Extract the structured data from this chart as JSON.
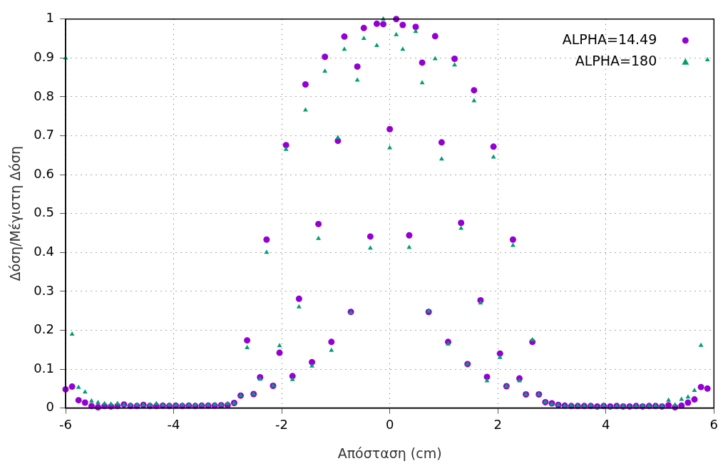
{
  "chart_data": {
    "type": "scatter",
    "xlabel": "Απόσταση (cm)",
    "ylabel": "Δόση/Μέγιστη Δόση",
    "x": [
      -6,
      -5.88,
      -5.76,
      -5.64,
      -5.52,
      -5.4,
      -5.28,
      -5.16,
      -5.04,
      -4.92,
      -4.8,
      -4.68,
      -4.56,
      -4.44,
      -4.32,
      -4.2,
      -4.08,
      -3.96,
      -3.84,
      -3.72,
      -3.6,
      -3.48,
      -3.36,
      -3.24,
      -3.12,
      -3,
      -2.88,
      -2.76,
      -2.64,
      -2.52,
      -2.4,
      -2.28,
      -2.16,
      -2.04,
      -1.92,
      -1.8,
      -1.68,
      -1.56,
      -1.44,
      -1.32,
      -1.2,
      -1.08,
      -0.96,
      -0.84,
      -0.72,
      -0.6,
      -0.48,
      -0.36,
      -0.24,
      -0.12,
      0,
      0.12,
      0.24,
      0.36,
      0.48,
      0.6,
      0.72,
      0.84,
      0.96,
      1.08,
      1.2,
      1.32,
      1.44,
      1.56,
      1.68,
      1.8,
      1.92,
      2.04,
      2.16,
      2.28,
      2.4,
      2.52,
      2.64,
      2.76,
      2.88,
      3,
      3.12,
      3.24,
      3.36,
      3.48,
      3.6,
      3.72,
      3.84,
      3.96,
      4.08,
      4.2,
      4.32,
      4.44,
      4.56,
      4.68,
      4.8,
      4.92,
      5.04,
      5.16,
      5.28,
      5.4,
      5.52,
      5.64,
      5.76,
      5.88
    ],
    "series": [
      {
        "name": "ALPHA=14.49",
        "color": "#9400d3",
        "marker": "circle",
        "values": [
          0.048,
          0.055,
          0.02,
          0.014,
          0.005,
          0.002,
          0.005,
          0.004,
          0.005,
          0.009,
          0.005,
          0.005,
          0.008,
          0.005,
          0.005,
          0.006,
          0.005,
          0.006,
          0.005,
          0.006,
          0.005,
          0.006,
          0.006,
          0.006,
          0.007,
          0.007,
          0.013,
          0.032,
          0.174,
          0.036,
          0.079,
          0.433,
          0.057,
          0.142,
          0.676,
          0.082,
          0.281,
          0.832,
          0.118,
          0.473,
          0.903,
          0.17,
          0.687,
          0.955,
          0.247,
          0.878,
          0.977,
          0.441,
          0.988,
          0.987,
          0.717,
          1.0,
          0.985,
          0.444,
          0.98,
          0.888,
          0.247,
          0.956,
          0.683,
          0.17,
          0.898,
          0.476,
          0.113,
          0.817,
          0.277,
          0.08,
          0.672,
          0.14,
          0.056,
          0.433,
          0.076,
          0.035,
          0.17,
          0.035,
          0.015,
          0.012,
          0.008,
          0.006,
          0.005,
          0.005,
          0.005,
          0.005,
          0.004,
          0.005,
          0.004,
          0.005,
          0.004,
          0.004,
          0.005,
          0.004,
          0.005,
          0.005,
          0.004,
          0.007,
          0.002,
          0.006,
          0.014,
          0.022,
          0.054,
          0.05
        ]
      },
      {
        "name": "ALPHA=180",
        "color": "#009e73",
        "marker": "triangle",
        "values": [
          0.9,
          0.19,
          0.053,
          0.041,
          0.018,
          0.014,
          0.011,
          0.01,
          0.011,
          0.008,
          0.008,
          0.008,
          0.008,
          0.008,
          0.011,
          0.008,
          0.008,
          0.008,
          0.008,
          0.008,
          0.008,
          0.008,
          0.008,
          0.009,
          0.008,
          0.011,
          0.012,
          0.032,
          0.155,
          0.036,
          0.074,
          0.4,
          0.057,
          0.16,
          0.665,
          0.073,
          0.26,
          0.766,
          0.108,
          0.436,
          0.866,
          0.148,
          0.695,
          0.922,
          0.245,
          0.843,
          0.95,
          0.411,
          0.932,
          1.0,
          0.669,
          0.96,
          0.922,
          0.413,
          0.968,
          0.836,
          0.249,
          0.898,
          0.64,
          0.164,
          0.882,
          0.462,
          0.113,
          0.79,
          0.27,
          0.07,
          0.645,
          0.13,
          0.056,
          0.418,
          0.07,
          0.035,
          0.175,
          0.035,
          0.015,
          0.01,
          0.008,
          0.005,
          0.007,
          0.006,
          0.005,
          0.007,
          0.002,
          0.007,
          0.002,
          0.005,
          0.005,
          0.003,
          0.005,
          0.006,
          0.005,
          0.006,
          0.005,
          0.02,
          0.008,
          0.022,
          0.028,
          0.045,
          0.161,
          0.895
        ]
      }
    ],
    "xlim": [
      -6,
      6
    ],
    "xticks": [
      -6,
      -4,
      -2,
      0,
      2,
      4,
      6
    ],
    "ylim": [
      0,
      1
    ],
    "yticks": [
      0,
      0.1,
      0.2,
      0.3,
      0.4,
      0.5,
      0.6,
      0.7,
      0.8,
      0.9,
      1
    ],
    "grid": true,
    "legend": "top right"
  }
}
